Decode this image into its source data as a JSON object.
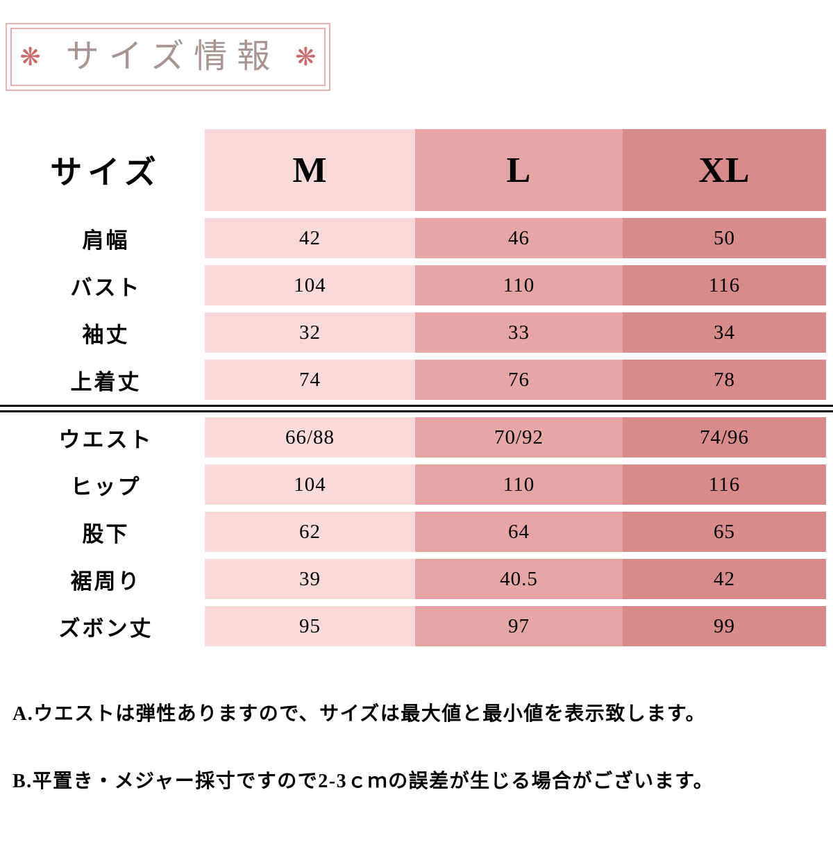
{
  "banner": {
    "title": "サイズ情報",
    "flower_icon": "❋"
  },
  "chart_data": {
    "type": "table",
    "title": "サイズ情報",
    "columns": [
      "サイズ",
      "M",
      "L",
      "XL"
    ],
    "rows": [
      {
        "label": "肩幅",
        "values": [
          "42",
          "46",
          "50"
        ]
      },
      {
        "label": "バスト",
        "values": [
          "104",
          "110",
          "116"
        ]
      },
      {
        "label": "袖丈",
        "values": [
          "32",
          "33",
          "34"
        ]
      },
      {
        "label": "上着丈",
        "values": [
          "74",
          "76",
          "78"
        ]
      },
      {
        "label": "ウエスト",
        "values": [
          "66/88",
          "70/92",
          "74/96"
        ]
      },
      {
        "label": "ヒップ",
        "values": [
          "104",
          "110",
          "116"
        ]
      },
      {
        "label": "股下",
        "values": [
          "62",
          "64",
          "65"
        ]
      },
      {
        "label": "裾周り",
        "values": [
          "39",
          "40.5",
          "42"
        ]
      },
      {
        "label": "ズボン丈",
        "values": [
          "95",
          "97",
          "99"
        ]
      }
    ],
    "separator_after_row_index": 3,
    "layout": {
      "grid": false,
      "header_position": "top-and-left"
    }
  },
  "notes": [
    "A.ウエストは弾性ありますので、サイズは最大値と最小値を表示致します。",
    "B.平置き・メジャー採寸ですので2-3ｃｍの誤差が生じる場合がございます。"
  ],
  "colors": {
    "column_m": "#f8dada",
    "column_l": "#e6a6a6",
    "column_xl": "#d88b8b",
    "banner_border": "#eaafaf",
    "banner_text": "#a89494",
    "flower": "#c86b6b",
    "divider": "#000000"
  }
}
